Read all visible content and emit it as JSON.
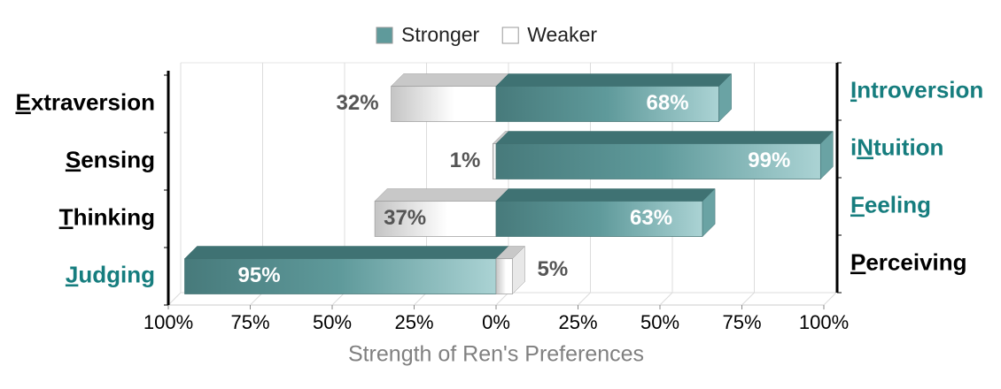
{
  "chart_data": {
    "type": "diverging-bar",
    "x_label": "Strength of Ren's Preferences",
    "legend": [
      {
        "name": "Stronger",
        "color": "#5f9a9b"
      },
      {
        "name": "Weaker",
        "color": "#ffffff"
      }
    ],
    "categories": [
      "Extraversion",
      "Sensing",
      "Thinking",
      "Judging"
    ],
    "right_categories": [
      "Introversion",
      "iNtuition",
      "Feeling",
      "Perceiving"
    ],
    "left_values": [
      32,
      1,
      37,
      95
    ],
    "left_value_labels": [
      "32%",
      "1%",
      "37%",
      "95%"
    ],
    "right_values": [
      68,
      99,
      63,
      5
    ],
    "right_value_labels": [
      "68%",
      "99%",
      "63%",
      "5%"
    ],
    "xlim": [
      -100,
      100
    ],
    "xticks": [
      {
        "value": -100,
        "label": "100%"
      },
      {
        "value": -75,
        "label": "75%"
      },
      {
        "value": -50,
        "label": "50%"
      },
      {
        "value": -25,
        "label": "25%"
      },
      {
        "value": 0,
        "label": "0%"
      },
      {
        "value": 25,
        "label": "25%"
      },
      {
        "value": 50,
        "label": "50%"
      },
      {
        "value": 75,
        "label": "75%"
      },
      {
        "value": 100,
        "label": "100%"
      }
    ]
  }
}
